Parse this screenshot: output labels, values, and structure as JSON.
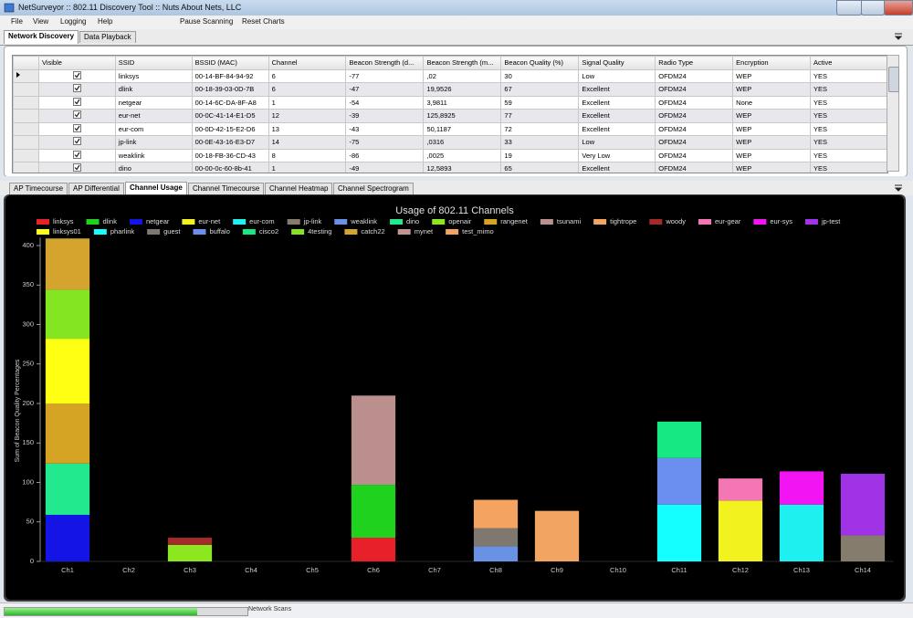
{
  "window": {
    "title": "NetSurveyor :: 802.11 Discovery Tool :: Nuts About Nets, LLC"
  },
  "menu": [
    "File",
    "View",
    "Logging",
    "Help",
    "Pause Scanning",
    "Reset Charts"
  ],
  "top_tabs": [
    "Network Discovery",
    "Data Playback"
  ],
  "table": {
    "columns": [
      "Visible",
      "SSID",
      "BSSID (MAC)",
      "Channel",
      "Beacon Strength (d...",
      "Beacon Strength (m...",
      "Beacon Quality (%)",
      "Signal Quality",
      "Radio Type",
      "Encryption",
      "Active"
    ],
    "rows": [
      [
        true,
        "linksys",
        "00-14-BF-84-94-92",
        "6",
        "-77",
        ",02",
        "30",
        "Low",
        "OFDM24",
        "WEP",
        "YES"
      ],
      [
        true,
        "dlink",
        "00-18-39-03-0D-7B",
        "6",
        "-47",
        "19,9526",
        "67",
        "Excellent",
        "OFDM24",
        "WEP",
        "YES"
      ],
      [
        true,
        "netgear",
        "00-14-6C-DA-8F-A8",
        "1",
        "-54",
        "3,9811",
        "59",
        "Excellent",
        "OFDM24",
        "None",
        "YES"
      ],
      [
        true,
        "eur-net",
        "00-0C-41-14-E1-D5",
        "12",
        "-39",
        "125,8925",
        "77",
        "Excellent",
        "OFDM24",
        "WEP",
        "YES"
      ],
      [
        true,
        "eur-com",
        "00-0D-42-15-E2-D6",
        "13",
        "-43",
        "50,1187",
        "72",
        "Excellent",
        "OFDM24",
        "WEP",
        "YES"
      ],
      [
        true,
        "jp-link",
        "00-0E-43-16-E3-D7",
        "14",
        "-75",
        ",0316",
        "33",
        "Low",
        "OFDM24",
        "WEP",
        "YES"
      ],
      [
        true,
        "weaklink",
        "00-18-FB-36-CD-43",
        "8",
        "-86",
        ",0025",
        "19",
        "Very Low",
        "OFDM24",
        "WEP",
        "YES"
      ],
      [
        true,
        "dino",
        "00-00-0c-60-8b-41",
        "1",
        "-49",
        "12,5893",
        "65",
        "Excellent",
        "OFDM24",
        "WEP",
        "YES"
      ]
    ]
  },
  "bottom_tabs": [
    "AP Timecourse",
    "AP Differential",
    "Channel Usage",
    "Channel Timecourse",
    "Channel Heatmap",
    "Channel Spectrogram"
  ],
  "status": {
    "progress_label": "Network Scans"
  },
  "chart_data": {
    "type": "bar",
    "stacked": true,
    "title": "Usage of 802.11 Channels",
    "y_label": "Sum of Beacon Quality Percentages",
    "categories": [
      "Ch1",
      "Ch2",
      "Ch3",
      "Ch4",
      "Ch5",
      "Ch6",
      "Ch7",
      "Ch8",
      "Ch9",
      "Ch10",
      "Ch11",
      "Ch12",
      "Ch13",
      "Ch14"
    ],
    "ylim": [
      0,
      410
    ],
    "yticks": [
      0,
      50,
      100,
      150,
      200,
      250,
      300,
      350,
      400
    ],
    "grid": false,
    "legend": "top",
    "series": [
      {
        "name": "linksys",
        "color": "#e8202a",
        "values": [
          null,
          null,
          null,
          null,
          null,
          30,
          null,
          null,
          null,
          null,
          null,
          null,
          null,
          null
        ]
      },
      {
        "name": "dlink",
        "color": "#1ed21e",
        "values": [
          null,
          null,
          null,
          null,
          null,
          67,
          null,
          null,
          null,
          null,
          null,
          null,
          null,
          null
        ]
      },
      {
        "name": "netgear",
        "color": "#1414e6",
        "values": [
          59,
          null,
          null,
          null,
          null,
          null,
          null,
          null,
          null,
          null,
          null,
          null,
          null,
          null
        ]
      },
      {
        "name": "eur-net",
        "color": "#f2f21e",
        "values": [
          null,
          null,
          null,
          null,
          null,
          null,
          null,
          null,
          null,
          null,
          null,
          77,
          null,
          null
        ]
      },
      {
        "name": "eur-com",
        "color": "#1ef0f0",
        "values": [
          null,
          null,
          null,
          null,
          null,
          null,
          null,
          null,
          null,
          null,
          null,
          null,
          72,
          null
        ]
      },
      {
        "name": "jp-link",
        "color": "#857c6e",
        "values": [
          null,
          null,
          null,
          null,
          null,
          null,
          null,
          null,
          null,
          null,
          null,
          null,
          null,
          33
        ]
      },
      {
        "name": "weaklink",
        "color": "#6a92e4",
        "values": [
          null,
          null,
          null,
          null,
          null,
          null,
          null,
          19,
          null,
          null,
          null,
          null,
          null,
          null
        ]
      },
      {
        "name": "dino",
        "color": "#22e88e",
        "values": [
          65,
          null,
          null,
          null,
          null,
          null,
          null,
          null,
          null,
          null,
          null,
          null,
          null,
          null
        ]
      },
      {
        "name": "openair",
        "color": "#8ce620",
        "values": [
          null,
          null,
          21,
          null,
          null,
          null,
          null,
          null,
          null,
          null,
          null,
          null,
          null,
          null
        ]
      },
      {
        "name": "rangenet",
        "color": "#d6a424",
        "values": [
          76,
          null,
          null,
          null,
          null,
          null,
          null,
          null,
          null,
          null,
          null,
          null,
          null,
          null
        ]
      },
      {
        "name": "tsunami",
        "color": "#bc8f8f",
        "values": [
          null,
          null,
          null,
          null,
          null,
          113,
          null,
          null,
          null,
          null,
          null,
          null,
          null,
          null
        ]
      },
      {
        "name": "tightrope",
        "color": "#f2a462",
        "values": [
          null,
          null,
          null,
          null,
          null,
          null,
          null,
          null,
          64,
          null,
          null,
          null,
          null,
          null
        ]
      },
      {
        "name": "woody",
        "color": "#a52a2a",
        "values": [
          null,
          null,
          9,
          null,
          null,
          null,
          null,
          null,
          null,
          null,
          null,
          null,
          null,
          null
        ]
      },
      {
        "name": "eur-gear",
        "color": "#f576b4",
        "values": [
          null,
          null,
          null,
          null,
          null,
          null,
          null,
          null,
          null,
          null,
          null,
          28,
          null,
          null
        ]
      },
      {
        "name": "eur-sys",
        "color": "#f214f2",
        "values": [
          null,
          null,
          null,
          null,
          null,
          null,
          null,
          null,
          null,
          null,
          null,
          null,
          42,
          null
        ]
      },
      {
        "name": "jp-test",
        "color": "#a033e6",
        "values": [
          null,
          null,
          null,
          null,
          null,
          null,
          null,
          null,
          null,
          null,
          null,
          null,
          null,
          78
        ]
      },
      {
        "name": "linksys01",
        "color": "#ffff14",
        "values": [
          82,
          null,
          null,
          null,
          null,
          null,
          null,
          null,
          null,
          null,
          null,
          null,
          null,
          null
        ]
      },
      {
        "name": "pharlink",
        "color": "#14ffff",
        "values": [
          null,
          null,
          null,
          null,
          null,
          null,
          null,
          null,
          null,
          null,
          72,
          null,
          null,
          null
        ]
      },
      {
        "name": "guest",
        "color": "#7f7870",
        "values": [
          null,
          null,
          null,
          null,
          null,
          null,
          null,
          23,
          null,
          null,
          null,
          null,
          null,
          null
        ]
      },
      {
        "name": "buffalo",
        "color": "#6a8ff0",
        "values": [
          null,
          null,
          null,
          null,
          null,
          null,
          null,
          null,
          null,
          null,
          59,
          null,
          null,
          null
        ]
      },
      {
        "name": "cisco2",
        "color": "#16e884",
        "values": [
          null,
          null,
          null,
          null,
          null,
          null,
          null,
          null,
          null,
          null,
          46,
          null,
          null,
          null
        ]
      },
      {
        "name": "4testing",
        "color": "#84e622",
        "values": [
          62,
          null,
          null,
          null,
          null,
          null,
          null,
          null,
          null,
          null,
          null,
          null,
          null,
          null
        ]
      },
      {
        "name": "catch22",
        "color": "#d4a42e",
        "values": [
          65,
          null,
          null,
          null,
          null,
          null,
          null,
          null,
          null,
          null,
          null,
          null,
          null,
          null
        ]
      },
      {
        "name": "mynet",
        "color": "#c4948e",
        "values": [
          null,
          null,
          null,
          null,
          null,
          null,
          null,
          null,
          null,
          null,
          null,
          null,
          null,
          null
        ]
      },
      {
        "name": "test_mimo",
        "color": "#f4a460",
        "values": [
          null,
          null,
          null,
          null,
          null,
          null,
          null,
          36,
          null,
          null,
          null,
          null,
          null,
          null
        ]
      }
    ]
  }
}
